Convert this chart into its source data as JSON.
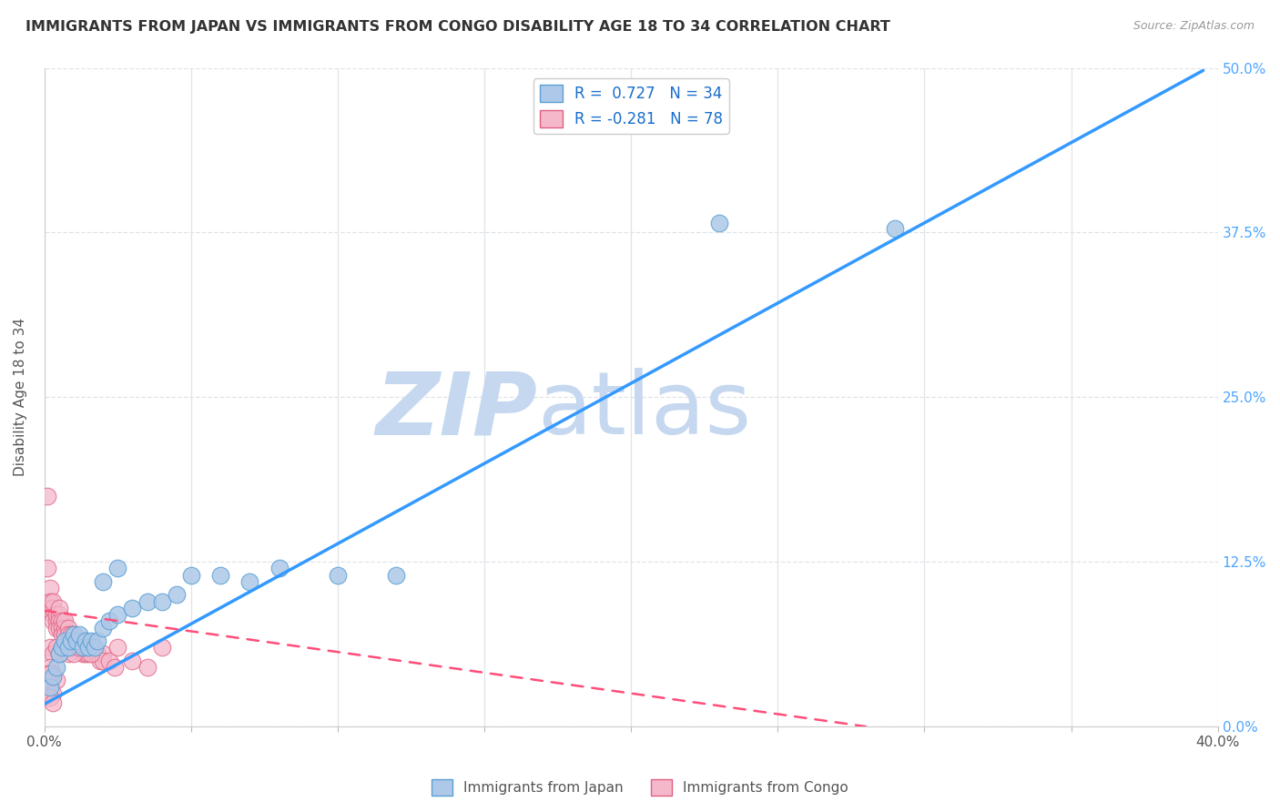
{
  "title": "IMMIGRANTS FROM JAPAN VS IMMIGRANTS FROM CONGO DISABILITY AGE 18 TO 34 CORRELATION CHART",
  "source": "Source: ZipAtlas.com",
  "ylabel": "Disability Age 18 to 34",
  "xlim": [
    0.0,
    0.4
  ],
  "ylim": [
    0.0,
    0.5
  ],
  "xticks": [
    0.0,
    0.05,
    0.1,
    0.15,
    0.2,
    0.25,
    0.3,
    0.35,
    0.4
  ],
  "ytick_labels_right": [
    "0.0%",
    "12.5%",
    "25.0%",
    "37.5%",
    "50.0%"
  ],
  "yticks_right": [
    0.0,
    0.125,
    0.25,
    0.375,
    0.5
  ],
  "japan_color": "#adc8e8",
  "japan_edge": "#5a9fd4",
  "congo_color": "#f5b8cb",
  "congo_edge": "#e06080",
  "japan_R": 0.727,
  "japan_N": 34,
  "congo_R": -0.281,
  "congo_N": 78,
  "japan_line_color": "#3399ff",
  "congo_line_color": "#ff4d79",
  "watermark_zip": "ZIP",
  "watermark_atlas": "atlas",
  "watermark_color": "#c5d8f0",
  "background_color": "#ffffff",
  "grid_color": "#e0e4e8",
  "japan_line_x": [
    0.0,
    0.395
  ],
  "japan_line_y": [
    0.017,
    0.498
  ],
  "congo_line_x": [
    0.0,
    0.28
  ],
  "congo_line_y": [
    0.088,
    0.0
  ],
  "japan_scatter_x": [
    0.002,
    0.003,
    0.004,
    0.005,
    0.006,
    0.007,
    0.008,
    0.009,
    0.01,
    0.011,
    0.012,
    0.013,
    0.014,
    0.015,
    0.016,
    0.017,
    0.018,
    0.02,
    0.022,
    0.025,
    0.03,
    0.035,
    0.04,
    0.045,
    0.05,
    0.06,
    0.07,
    0.08,
    0.1,
    0.12,
    0.02,
    0.025,
    0.23,
    0.29
  ],
  "japan_scatter_y": [
    0.03,
    0.038,
    0.045,
    0.055,
    0.06,
    0.065,
    0.06,
    0.065,
    0.07,
    0.065,
    0.07,
    0.06,
    0.065,
    0.06,
    0.065,
    0.06,
    0.065,
    0.075,
    0.08,
    0.085,
    0.09,
    0.095,
    0.095,
    0.1,
    0.115,
    0.115,
    0.11,
    0.12,
    0.115,
    0.115,
    0.11,
    0.12,
    0.382,
    0.378
  ],
  "congo_scatter_x": [
    0.001,
    0.001,
    0.002,
    0.002,
    0.002,
    0.003,
    0.003,
    0.003,
    0.003,
    0.004,
    0.004,
    0.004,
    0.005,
    0.005,
    0.005,
    0.005,
    0.006,
    0.006,
    0.006,
    0.007,
    0.007,
    0.007,
    0.008,
    0.008,
    0.008,
    0.009,
    0.009,
    0.009,
    0.01,
    0.01,
    0.01,
    0.011,
    0.011,
    0.012,
    0.012,
    0.013,
    0.013,
    0.014,
    0.014,
    0.015,
    0.015,
    0.016,
    0.017,
    0.018,
    0.019,
    0.02,
    0.02,
    0.022,
    0.024,
    0.025,
    0.03,
    0.035,
    0.04,
    0.002,
    0.003,
    0.004,
    0.005,
    0.006,
    0.007,
    0.008,
    0.009,
    0.01,
    0.011,
    0.012,
    0.013,
    0.014,
    0.015,
    0.016,
    0.002,
    0.003,
    0.004,
    0.001,
    0.001,
    0.002,
    0.002,
    0.003,
    0.002,
    0.003
  ],
  "congo_scatter_y": [
    0.175,
    0.12,
    0.105,
    0.095,
    0.09,
    0.085,
    0.08,
    0.09,
    0.095,
    0.08,
    0.085,
    0.075,
    0.085,
    0.08,
    0.075,
    0.09,
    0.08,
    0.075,
    0.07,
    0.075,
    0.08,
    0.07,
    0.075,
    0.07,
    0.065,
    0.065,
    0.07,
    0.06,
    0.065,
    0.07,
    0.06,
    0.065,
    0.06,
    0.065,
    0.06,
    0.065,
    0.055,
    0.06,
    0.055,
    0.06,
    0.055,
    0.06,
    0.055,
    0.055,
    0.05,
    0.055,
    0.05,
    0.05,
    0.045,
    0.06,
    0.05,
    0.045,
    0.06,
    0.06,
    0.055,
    0.06,
    0.055,
    0.06,
    0.06,
    0.055,
    0.06,
    0.055,
    0.065,
    0.06,
    0.065,
    0.06,
    0.06,
    0.055,
    0.045,
    0.04,
    0.035,
    0.04,
    0.035,
    0.04,
    0.03,
    0.025,
    0.022,
    0.018
  ]
}
